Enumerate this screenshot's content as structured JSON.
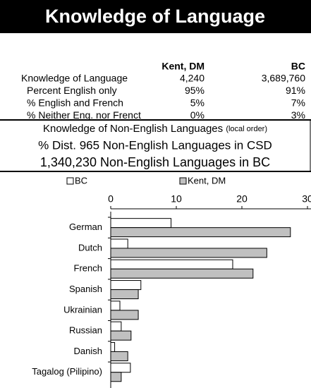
{
  "header": {
    "title": "Knowledge of Language"
  },
  "table": {
    "columns": [
      "Kent, DM",
      "BC"
    ],
    "rows": [
      [
        "Knowledge of Language",
        "4,240",
        "3,689,760"
      ],
      [
        "Percent English only",
        "95%",
        "91%"
      ],
      [
        "% English and French",
        "5%",
        "7%"
      ],
      [
        "% Neither Eng. nor Frenct",
        "0%",
        "3%"
      ]
    ]
  },
  "text": {
    "line1": "Knowledge of Non-English Languages",
    "line1_note": "(local order)",
    "line2": "% Dist. 965 Non-English Languages in CSD",
    "line3": "1,340,230 Non-English Languages in BC"
  },
  "chart_data": {
    "type": "hbar",
    "categories": [
      "German",
      "Dutch",
      "French",
      "Spanish",
      "Ukrainian",
      "Russian",
      "Danish",
      "Tagalog (Pilipino)"
    ],
    "series": [
      {
        "name": "BC",
        "color": "#ffffff",
        "values": [
          9.2,
          2.6,
          18.6,
          4.6,
          1.4,
          1.6,
          0.6,
          3.0
        ]
      },
      {
        "name": "Kent, DM",
        "color": "#c0c0c0",
        "values": [
          27.4,
          23.8,
          21.7,
          4.2,
          4.2,
          3.1,
          2.6,
          1.6
        ]
      }
    ],
    "xlim": [
      0,
      30
    ],
    "xticks": [
      0,
      10,
      20,
      30
    ]
  }
}
